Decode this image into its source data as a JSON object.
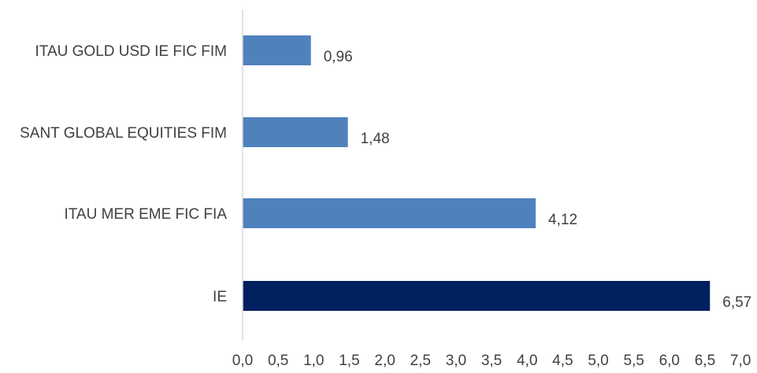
{
  "chart_data": {
    "type": "bar",
    "orientation": "horizontal",
    "title": "",
    "xlabel": "",
    "ylabel": "",
    "categories": [
      "ITAU GOLD USD IE FIC FIM",
      "SANT GLOBAL EQUITIES FIM",
      "ITAU MER EME FIC FIA",
      "IE"
    ],
    "values": [
      0.96,
      1.48,
      4.12,
      6.57
    ],
    "data_labels": [
      "0,96",
      "1,48",
      "4,12",
      "6,57"
    ],
    "xlim": [
      0,
      7
    ],
    "x_ticks": [
      0,
      0.5,
      1,
      1.5,
      2,
      2.5,
      3,
      3.5,
      4,
      4.5,
      5,
      5.5,
      6,
      6.5,
      7
    ],
    "x_tick_labels": [
      "0,0",
      "0,5",
      "1,0",
      "1,5",
      "2,0",
      "2,5",
      "3,0",
      "3,5",
      "4,0",
      "4,5",
      "5,0",
      "5,5",
      "6,0",
      "6,5",
      "7,0"
    ],
    "bar_colors": [
      "#4f81bd",
      "#4f81bd",
      "#4f81bd",
      "#002060"
    ],
    "grid": false,
    "legend": "none"
  }
}
